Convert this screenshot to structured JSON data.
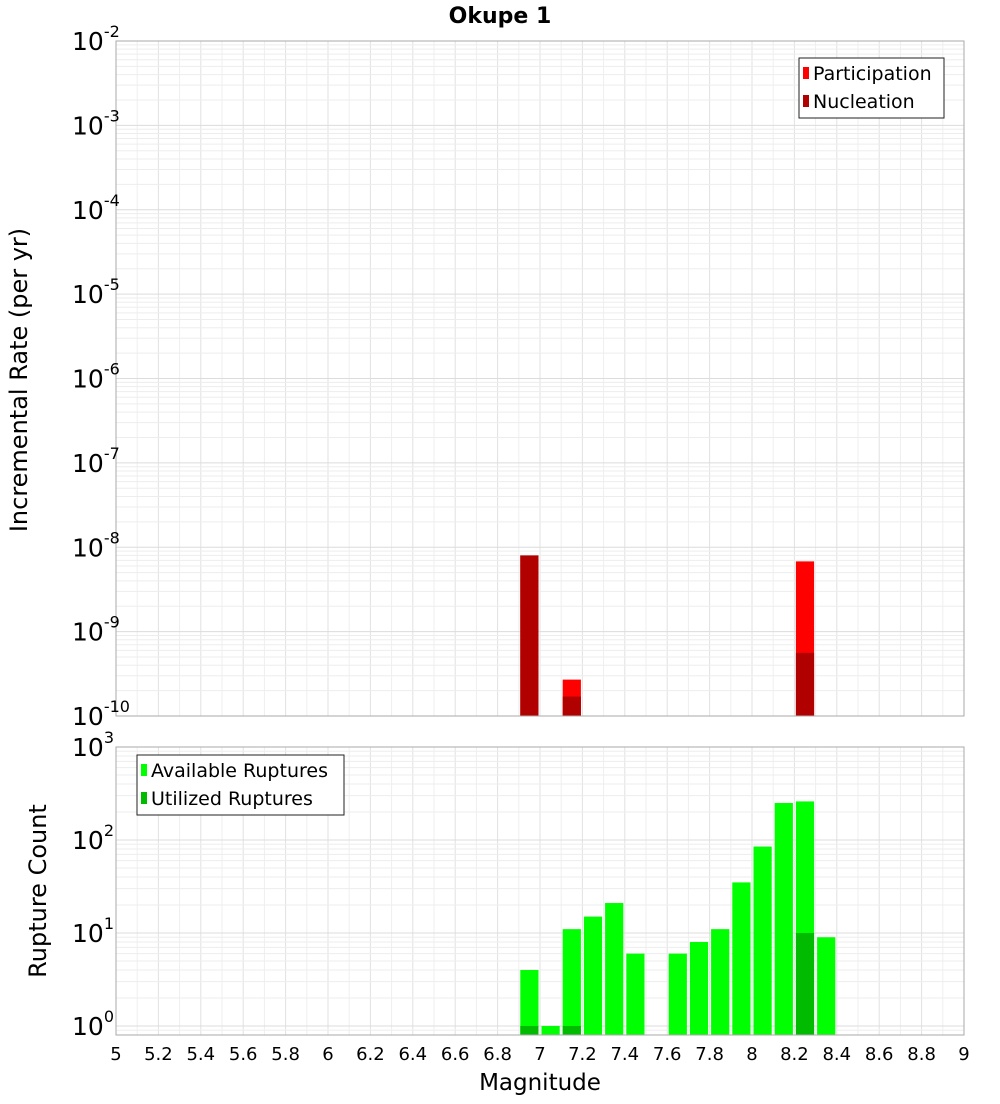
{
  "chart_data": [
    {
      "type": "bar",
      "title": "Okupe 1",
      "xlabel": "",
      "ylabel": "Incremental Rate (per yr)",
      "yscale": "log",
      "ylim": [
        1e-10,
        0.01
      ],
      "xlim": [
        5,
        9
      ],
      "bin_width": 0.1,
      "grid": true,
      "legend_position": "top-right",
      "series": [
        {
          "name": "Participation",
          "color": "#ff0000",
          "x": [
            6.95,
            7.15,
            8.25
          ],
          "values": [
            8e-09,
            2.7e-10,
            6.8e-09
          ]
        },
        {
          "name": "Nucleation",
          "color": "#b00000",
          "x": [
            6.95,
            7.15,
            8.25
          ],
          "values": [
            8e-09,
            1.7e-10,
            5.6e-10
          ]
        }
      ]
    },
    {
      "type": "bar",
      "title": "",
      "xlabel": "Magnitude",
      "ylabel": "Rupture Count",
      "yscale": "log",
      "ylim": [
        0.8,
        1000
      ],
      "xlim": [
        5,
        9
      ],
      "bin_width": 0.1,
      "grid": true,
      "legend_position": "top-left",
      "x_ticks": [
        "5",
        "5.2",
        "5.4",
        "5.6",
        "5.8",
        "6",
        "6.2",
        "6.4",
        "6.6",
        "6.8",
        "7",
        "7.2",
        "7.4",
        "7.6",
        "7.8",
        "8",
        "8.2",
        "8.4",
        "8.6",
        "8.8",
        "9"
      ],
      "series": [
        {
          "name": "Available Ruptures",
          "color": "#00ff00",
          "x": [
            6.95,
            7.05,
            7.15,
            7.25,
            7.35,
            7.45,
            7.65,
            7.75,
            7.85,
            7.95,
            8.05,
            8.15,
            8.25,
            8.35
          ],
          "values": [
            4,
            1,
            11,
            15,
            21,
            6,
            6,
            8,
            11,
            35,
            85,
            250,
            260,
            9
          ]
        },
        {
          "name": "Utilized Ruptures",
          "color": "#00bb00",
          "x": [
            6.95,
            7.15,
            8.25
          ],
          "values": [
            1,
            1,
            10
          ]
        }
      ]
    }
  ]
}
